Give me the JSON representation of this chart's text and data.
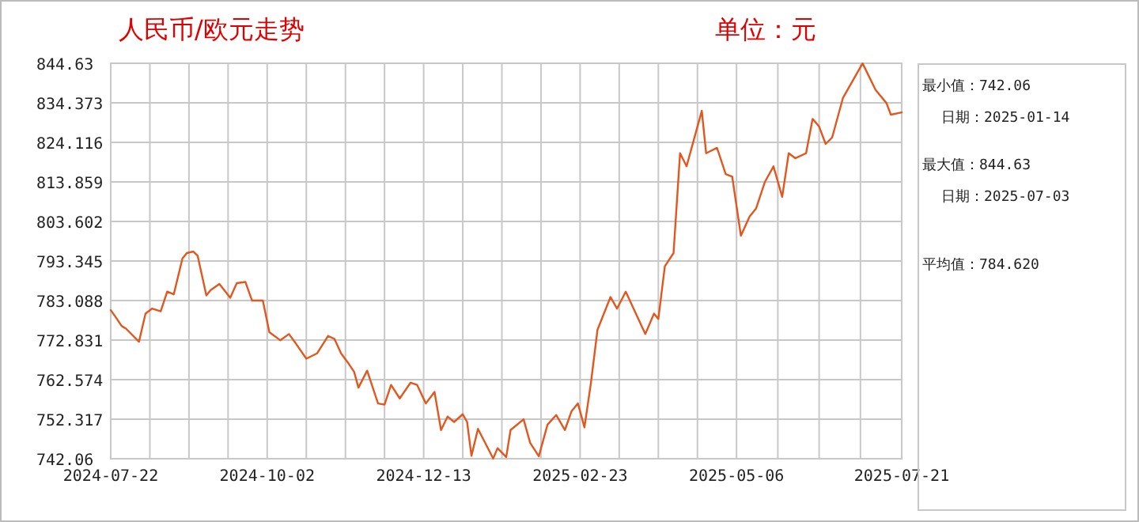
{
  "chart_data": {
    "type": "line",
    "title": "人民币/欧元走势",
    "subtitle": "单位：元",
    "x": [
      "2024-07-22",
      "2024-07-24",
      "2024-07-27",
      "2024-07-29",
      "2024-08-04",
      "2024-08-07",
      "2024-08-10",
      "2024-08-14",
      "2024-08-17",
      "2024-08-20",
      "2024-08-24",
      "2024-08-26",
      "2024-08-29",
      "2024-08-31",
      "2024-09-04",
      "2024-09-06",
      "2024-09-10",
      "2024-09-15",
      "2024-09-18",
      "2024-09-22",
      "2024-09-25",
      "2024-09-30",
      "2024-10-03",
      "2024-10-08",
      "2024-10-12",
      "2024-10-15",
      "2024-10-20",
      "2024-10-25",
      "2024-10-30",
      "2024-11-02",
      "2024-11-05",
      "2024-11-08",
      "2024-11-11",
      "2024-11-13",
      "2024-11-17",
      "2024-11-22",
      "2024-11-25",
      "2024-11-28",
      "2024-12-02",
      "2024-12-07",
      "2024-12-10",
      "2024-12-14",
      "2024-12-18",
      "2024-12-21",
      "2024-12-24",
      "2024-12-27",
      "2024-12-31",
      "2025-01-02",
      "2025-01-04",
      "2025-01-07",
      "2025-01-14",
      "2025-01-16",
      "2025-01-20",
      "2025-01-22",
      "2025-01-28",
      "2025-01-31",
      "2025-02-04",
      "2025-02-08",
      "2025-02-12",
      "2025-02-16",
      "2025-02-19",
      "2025-02-22",
      "2025-02-25",
      "2025-02-28",
      "2025-03-03",
      "2025-03-09",
      "2025-03-12",
      "2025-03-16",
      "2025-03-25",
      "2025-03-29",
      "2025-03-31",
      "2025-04-03",
      "2025-04-07",
      "2025-04-10",
      "2025-04-13",
      "2025-04-16",
      "2025-04-20",
      "2025-04-22",
      "2025-04-27",
      "2025-05-01",
      "2025-05-04",
      "2025-05-08",
      "2025-05-12",
      "2025-05-15",
      "2025-05-19",
      "2025-05-23",
      "2025-05-27",
      "2025-05-30",
      "2025-06-02",
      "2025-06-07",
      "2025-06-10",
      "2025-06-13",
      "2025-06-16",
      "2025-06-19",
      "2025-06-24",
      "2025-07-03",
      "2025-07-09",
      "2025-07-14",
      "2025-07-16",
      "2025-07-21"
    ],
    "series": [
      {
        "color": "#e2571e",
        "values": [
          780.6,
          779.0,
          776.5,
          775.8,
          772.4,
          779.7,
          781.0,
          780.3,
          785.4,
          784.7,
          794.0,
          795.4,
          795.8,
          794.7,
          784.4,
          785.8,
          787.4,
          783.8,
          787.6,
          787.9,
          783.1,
          783.1,
          774.9,
          772.8,
          774.4,
          772.1,
          768.0,
          769.4,
          773.9,
          773.1,
          769.4,
          767.1,
          764.6,
          760.5,
          764.9,
          756.4,
          756.1,
          761.2,
          757.7,
          761.8,
          761.2,
          756.4,
          759.4,
          749.5,
          753.0,
          751.6,
          753.6,
          751.6,
          742.8,
          749.8,
          742.1,
          744.8,
          742.5,
          749.5,
          752.3,
          746.2,
          742.7,
          750.9,
          753.4,
          749.5,
          754.3,
          756.4,
          750.2,
          761.8,
          775.5,
          784.0,
          781.0,
          785.4,
          774.4,
          779.7,
          778.3,
          792.0,
          795.4,
          821.3,
          817.9,
          824.1,
          832.3,
          821.3,
          822.7,
          815.9,
          815.2,
          799.9,
          804.9,
          807.0,
          813.8,
          817.9,
          810.0,
          821.3,
          820.0,
          821.3,
          830.2,
          828.2,
          823.7,
          825.4,
          835.7,
          844.6,
          837.7,
          834.3,
          831.3,
          831.9
        ]
      }
    ],
    "xlim": [
      "2024-07-22",
      "2025-07-21"
    ],
    "xticks": [
      {
        "value": "2024-07-22",
        "label": "2024-07-22"
      },
      {
        "value": "2024-08-09",
        "label": null
      },
      {
        "value": "2024-08-27",
        "label": null
      },
      {
        "value": "2024-09-14",
        "label": null
      },
      {
        "value": "2024-10-02",
        "label": "2024-10-02"
      },
      {
        "value": "2024-10-20",
        "label": null
      },
      {
        "value": "2024-11-07",
        "label": null
      },
      {
        "value": "2024-11-25",
        "label": null
      },
      {
        "value": "2024-12-13",
        "label": "2024-12-13"
      },
      {
        "value": "2024-12-31",
        "label": null
      },
      {
        "value": "2025-01-18",
        "label": null
      },
      {
        "value": "2025-02-05",
        "label": null
      },
      {
        "value": "2025-02-23",
        "label": "2025-02-23"
      },
      {
        "value": "2025-03-13",
        "label": null
      },
      {
        "value": "2025-03-31",
        "label": null
      },
      {
        "value": "2025-04-18",
        "label": null
      },
      {
        "value": "2025-05-06",
        "label": "2025-05-06"
      },
      {
        "value": "2025-05-25",
        "label": null
      },
      {
        "value": "2025-06-13",
        "label": null
      },
      {
        "value": "2025-07-02",
        "label": null
      },
      {
        "value": "2025-07-21",
        "label": "2025-07-21"
      }
    ],
    "ylim": [
      742.06,
      844.63
    ],
    "yticks": [
      742.06,
      752.317,
      762.574,
      772.831,
      783.088,
      793.345,
      803.602,
      813.859,
      824.116,
      834.373,
      844.63
    ],
    "grid": true,
    "marker": "none",
    "line_style": "solid",
    "annotations": [
      "最小值：742.06",
      "日期：2025-01-14",
      "最大值：844.63",
      "日期：2025-07-03",
      "平均值：784.620"
    ]
  }
}
